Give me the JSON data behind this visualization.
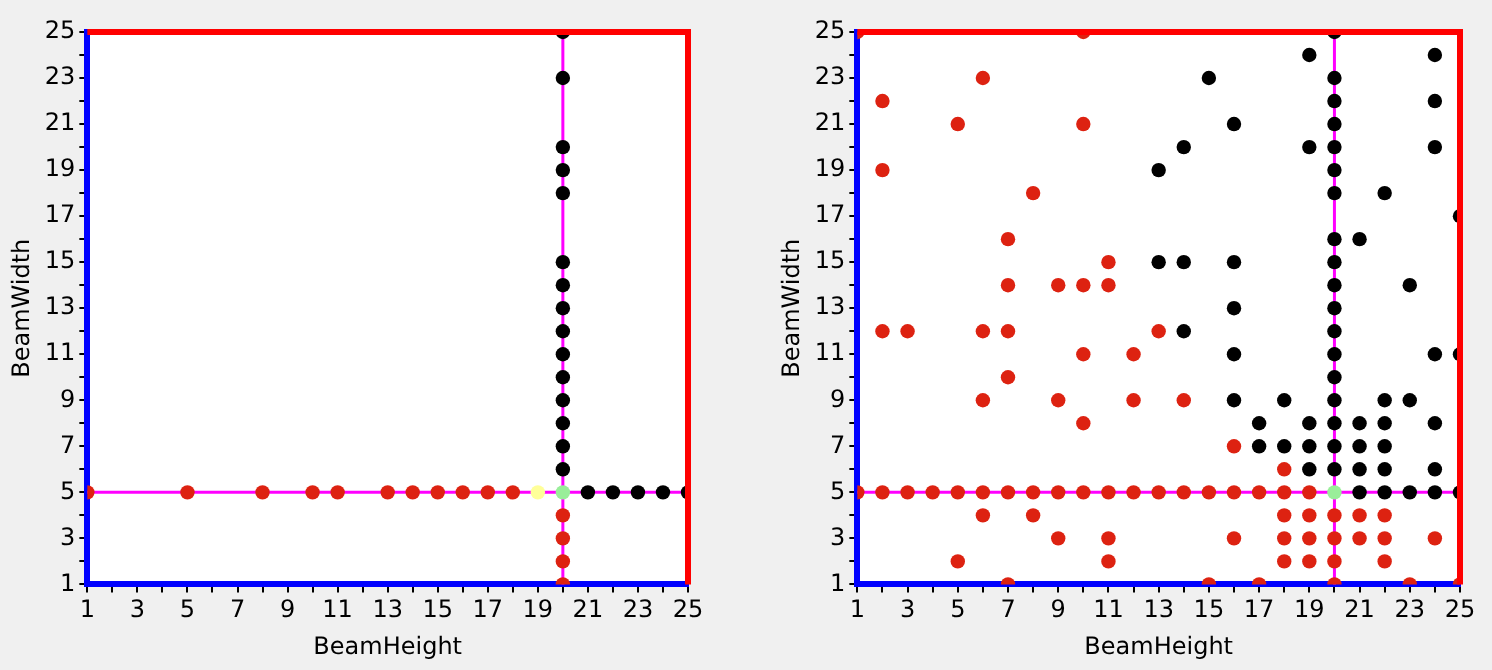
{
  "chart_data": [
    {
      "type": "scatter",
      "xlabel": "BeamHeight",
      "ylabel": "BeamWidth",
      "xlim": [
        1,
        25
      ],
      "ylim": [
        1,
        25
      ],
      "grid": false,
      "legend": false,
      "marker": "circle",
      "xticks": [
        1,
        {
          "value": 2,
          "label": null
        },
        3,
        {
          "value": 4,
          "label": null
        },
        5,
        {
          "value": 6,
          "label": null
        },
        7,
        {
          "value": 8,
          "label": null
        },
        9,
        {
          "value": 10,
          "label": null
        },
        11,
        {
          "value": 12,
          "label": null
        },
        13,
        {
          "value": 14,
          "label": null
        },
        15,
        {
          "value": 16,
          "label": null
        },
        17,
        {
          "value": 18,
          "label": null
        },
        19,
        {
          "value": 20,
          "label": null
        },
        21,
        {
          "value": 22,
          "label": null
        },
        23,
        {
          "value": 24,
          "label": null
        },
        25
      ],
      "yticks": [
        1,
        {
          "value": 2,
          "label": null
        },
        3,
        {
          "value": 4,
          "label": null
        },
        5,
        {
          "value": 6,
          "label": null
        },
        7,
        {
          "value": 8,
          "label": null
        },
        9,
        {
          "value": 10,
          "label": null
        },
        11,
        {
          "value": 12,
          "label": null
        },
        13,
        {
          "value": 14,
          "label": null
        },
        15,
        {
          "value": 16,
          "label": null
        },
        17,
        {
          "value": 18,
          "label": null
        },
        19,
        {
          "value": 20,
          "label": null
        },
        21,
        {
          "value": 22,
          "label": null
        },
        23,
        {
          "value": 24,
          "label": null
        },
        25
      ],
      "ref_lines": [
        {
          "axis": "x",
          "value": 20,
          "color": "#ff00ff"
        },
        {
          "axis": "y",
          "value": 5,
          "color": "#ff00ff"
        }
      ],
      "series": [
        {
          "color": "#dd2211",
          "x": [
            1,
            5,
            8,
            10,
            11,
            13,
            14,
            15,
            16,
            17,
            18,
            20,
            20,
            20,
            20
          ],
          "values": [
            5,
            5,
            5,
            5,
            5,
            5,
            5,
            5,
            5,
            5,
            5,
            4,
            3,
            2,
            1
          ]
        },
        {
          "color": "#000000",
          "x": [
            20,
            20,
            20,
            20,
            20,
            20,
            20,
            20,
            20,
            20,
            20,
            20,
            20,
            20,
            20,
            21,
            22,
            23,
            24,
            25
          ],
          "values": [
            6,
            7,
            8,
            9,
            10,
            11,
            12,
            13,
            14,
            15,
            18,
            19,
            20,
            23,
            25,
            5,
            5,
            5,
            5,
            5
          ]
        },
        {
          "color": "#ffff99",
          "x": [
            19
          ],
          "values": [
            5
          ]
        },
        {
          "color": "#99ee99",
          "x": [
            20
          ],
          "values": [
            5
          ]
        }
      ]
    },
    {
      "type": "scatter",
      "xlabel": "BeamHeight",
      "ylabel": "BeamWidth",
      "xlim": [
        1,
        25
      ],
      "ylim": [
        1,
        25
      ],
      "grid": false,
      "legend": false,
      "marker": "circle",
      "xticks": [
        1,
        {
          "value": 2,
          "label": null
        },
        3,
        {
          "value": 4,
          "label": null
        },
        5,
        {
          "value": 6,
          "label": null
        },
        7,
        {
          "value": 8,
          "label": null
        },
        9,
        {
          "value": 10,
          "label": null
        },
        11,
        {
          "value": 12,
          "label": null
        },
        13,
        {
          "value": 14,
          "label": null
        },
        15,
        {
          "value": 16,
          "label": null
        },
        17,
        {
          "value": 18,
          "label": null
        },
        19,
        {
          "value": 20,
          "label": null
        },
        21,
        {
          "value": 22,
          "label": null
        },
        23,
        {
          "value": 24,
          "label": null
        },
        25
      ],
      "yticks": [
        1,
        {
          "value": 2,
          "label": null
        },
        3,
        {
          "value": 4,
          "label": null
        },
        5,
        {
          "value": 6,
          "label": null
        },
        7,
        {
          "value": 8,
          "label": null
        },
        9,
        {
          "value": 10,
          "label": null
        },
        11,
        {
          "value": 12,
          "label": null
        },
        13,
        {
          "value": 14,
          "label": null
        },
        15,
        {
          "value": 16,
          "label": null
        },
        17,
        {
          "value": 18,
          "label": null
        },
        19,
        {
          "value": 20,
          "label": null
        },
        21,
        {
          "value": 22,
          "label": null
        },
        23,
        {
          "value": 24,
          "label": null
        },
        25
      ],
      "ref_lines": [
        {
          "axis": "x",
          "value": 20,
          "color": "#ff00ff"
        },
        {
          "axis": "y",
          "value": 5,
          "color": "#ff00ff"
        }
      ],
      "series": [
        {
          "color": "#dd2211",
          "x": [
            1,
            10,
            2,
            5,
            10,
            6,
            2,
            8,
            7,
            11,
            7,
            9,
            10,
            11,
            2,
            3,
            6,
            7,
            13,
            10,
            12,
            6,
            12,
            14,
            9,
            7,
            10,
            16,
            18,
            1,
            2,
            3,
            4,
            5,
            6,
            7,
            8,
            9,
            10,
            11,
            12,
            13,
            14,
            15,
            16,
            17,
            18,
            19,
            6,
            8,
            18,
            19,
            20,
            21,
            22,
            9,
            11,
            16,
            18,
            19,
            20,
            21,
            22,
            24,
            5,
            11,
            18,
            19,
            20,
            22,
            7,
            15,
            17,
            20,
            23,
            25
          ],
          "values": [
            25,
            25,
            22,
            21,
            21,
            23,
            19,
            18,
            16,
            15,
            14,
            14,
            14,
            14,
            12,
            12,
            12,
            12,
            12,
            11,
            11,
            9,
            9,
            9,
            9,
            10,
            8,
            7,
            6,
            5,
            5,
            5,
            5,
            5,
            5,
            5,
            5,
            5,
            5,
            5,
            5,
            5,
            5,
            5,
            5,
            5,
            5,
            5,
            4,
            4,
            4,
            4,
            4,
            4,
            4,
            3,
            3,
            3,
            3,
            3,
            3,
            3,
            3,
            3,
            2,
            2,
            2,
            2,
            2,
            2,
            1,
            1,
            1,
            1,
            1,
            1
          ]
        },
        {
          "color": "#000000",
          "x": [
            19,
            24,
            20,
            15,
            20,
            20,
            24,
            16,
            20,
            14,
            19,
            20,
            24,
            13,
            20,
            20,
            22,
            25,
            20,
            21,
            13,
            14,
            16,
            20,
            20,
            23,
            16,
            20,
            14,
            20,
            16,
            20,
            20,
            24,
            25,
            16,
            18,
            20,
            22,
            23,
            17,
            19,
            20,
            21,
            22,
            24,
            17,
            18,
            19,
            20,
            21,
            22,
            19,
            20,
            21,
            22,
            24,
            21,
            22,
            23,
            24,
            25
          ],
          "values": [
            24,
            24,
            25,
            23,
            23,
            22,
            22,
            21,
            21,
            20,
            20,
            20,
            20,
            19,
            19,
            18,
            18,
            17,
            16,
            16,
            15,
            15,
            15,
            15,
            14,
            14,
            13,
            13,
            12,
            12,
            11,
            11,
            10,
            11,
            11,
            9,
            9,
            9,
            9,
            9,
            8,
            8,
            8,
            8,
            8,
            8,
            7,
            7,
            7,
            7,
            7,
            7,
            6,
            6,
            6,
            6,
            6,
            5,
            5,
            5,
            5,
            5
          ]
        },
        {
          "color": "#99ee99",
          "x": [
            20
          ],
          "values": [
            5
          ]
        }
      ]
    }
  ]
}
